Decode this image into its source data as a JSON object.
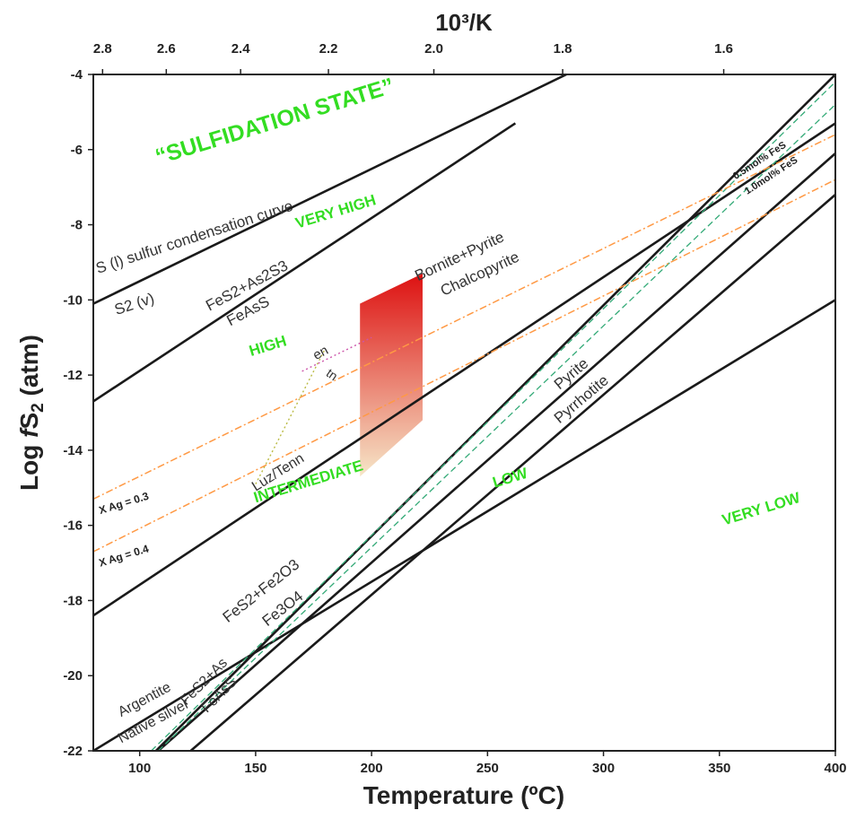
{
  "chart_data": {
    "type": "line",
    "xlabel": "Temperature (ºC)",
    "x2label": "10³/K",
    "ylabel_prefix": "Log ",
    "ylabel_italic": "f",
    "ylabel_main": "S",
    "ylabel_sub": "2",
    "ylabel_suffix": " (atm)",
    "xlim": [
      80,
      400
    ],
    "ylim": [
      -22,
      -4
    ],
    "x_ticks": [
      100,
      150,
      200,
      250,
      300,
      350,
      400
    ],
    "y_ticks": [
      -4,
      -6,
      -8,
      -10,
      -12,
      -14,
      -16,
      -18,
      -20,
      -22
    ],
    "x2_ticks": [
      "2.8",
      "2.6",
      "2.4",
      "2.2",
      "2.0",
      "1.8",
      "1.6"
    ],
    "zones": [
      {
        "text": "“SULFIDATION STATE”",
        "x": 108,
        "y": -6.4,
        "rot": -17,
        "size": 25
      },
      {
        "text": "VERY HIGH",
        "x": 168,
        "y": -8.1,
        "rot": -17,
        "size": 17
      },
      {
        "text": "HIGH",
        "x": 148,
        "y": -11.5,
        "rot": -17,
        "size": 17
      },
      {
        "text": "INTERMEDIATE",
        "x": 150,
        "y": -15.4,
        "rot": -17,
        "size": 17
      },
      {
        "text": "LOW",
        "x": 253,
        "y": -15.0,
        "rot": -17,
        "size": 17
      },
      {
        "text": "VERY LOW",
        "x": 352,
        "y": -16.0,
        "rot": -17,
        "size": 17
      }
    ],
    "series": [
      {
        "x": [
          80,
          284
        ],
        "y": [
          -10.1,
          -4.0
        ],
        "style": "solid"
      },
      {
        "x": [
          80,
          262
        ],
        "y": [
          -12.7,
          -5.3
        ],
        "style": "solid"
      },
      {
        "x": [
          80,
          400
        ],
        "y": [
          -18.4,
          -5.3
        ],
        "style": "solid"
      },
      {
        "x": [
          80,
          400
        ],
        "y": [
          -22.0,
          -10.0
        ],
        "style": "solid"
      },
      {
        "x": [
          107,
          400
        ],
        "y": [
          -22.0,
          -4.0
        ],
        "style": "solid"
      },
      {
        "x": [
          108,
          400
        ],
        "y": [
          -22.0,
          -6.1
        ],
        "style": "solid"
      },
      {
        "x": [
          122,
          400
        ],
        "y": [
          -22.0,
          -7.2
        ],
        "style": "solid"
      },
      {
        "x": [
          105,
          400
        ],
        "y": [
          -22.0,
          -4.2
        ],
        "style": "dash",
        "color": "#33aa77"
      },
      {
        "x": [
          108,
          400
        ],
        "y": [
          -22.0,
          -4.8
        ],
        "style": "dash",
        "color": "#33aa77"
      },
      {
        "x": [
          80,
          400
        ],
        "y": [
          -15.3,
          -5.6
        ],
        "style": "dashdot",
        "color": "#ff9944"
      },
      {
        "x": [
          80,
          400
        ],
        "y": [
          -16.7,
          -6.8
        ],
        "style": "dashdot",
        "color": "#ff9944"
      },
      {
        "x": [
          150,
          180
        ],
        "y": [
          -14.9,
          -11.3
        ],
        "style": "dot",
        "color": "#bbbb44"
      },
      {
        "x": [
          170,
          200
        ],
        "y": [
          -11.9,
          -11.0
        ],
        "style": "dot",
        "color": "#cc55aa"
      }
    ],
    "shaded_region": {
      "x": [
        195,
        195,
        222,
        222
      ],
      "y": [
        -10.1,
        -14.7,
        -13.2,
        -9.3
      ],
      "color_top": "#dd1111",
      "color_bottom": "#f6e6c8"
    },
    "curve_labels": [
      {
        "text": "S (l) sulfur condensation curve",
        "x": 82,
        "y": -9.3,
        "rot": -18,
        "size": 17
      },
      {
        "text": "S2 (v)",
        "x": 90,
        "y": -10.4,
        "rot": -18,
        "size": 17
      },
      {
        "text": "FeS2+As2S3",
        "x": 130,
        "y": -10.3,
        "rot": -28,
        "size": 17
      },
      {
        "text": "FeAsS",
        "x": 139,
        "y": -10.7,
        "rot": -28,
        "size": 17
      },
      {
        "text": "Bornite+Pyrite",
        "x": 220,
        "y": -9.5,
        "rot": -25,
        "size": 17
      },
      {
        "text": "Chalcopyrite",
        "x": 231,
        "y": -9.9,
        "rot": -25,
        "size": 17
      },
      {
        "text": "en",
        "x": 176,
        "y": -11.6,
        "rot": -28,
        "size": 15
      },
      {
        "text": "tn",
        "x": 180,
        "y": -12.0,
        "rot": 35,
        "size": 14
      },
      {
        "text": "Luz/Tenn",
        "x": 150,
        "y": -15.1,
        "rot": -32,
        "size": 16
      },
      {
        "text": "FeS2+Fe2O3",
        "x": 138,
        "y": -18.6,
        "rot": -38,
        "size": 17
      },
      {
        "text": "Fe3O4",
        "x": 155,
        "y": -18.7,
        "rot": -38,
        "size": 17
      },
      {
        "text": "Argentite",
        "x": 92,
        "y": -21.1,
        "rot": -28,
        "size": 16
      },
      {
        "text": "Native silver",
        "x": 92,
        "y": -21.8,
        "rot": -28,
        "size": 16
      },
      {
        "text": "FeS2+As",
        "x": 120,
        "y": -20.8,
        "rot": -45,
        "size": 16
      },
      {
        "text": "FeAsS",
        "x": 129,
        "y": -21.0,
        "rot": -45,
        "size": 16
      },
      {
        "text": "Pyrite",
        "x": 281,
        "y": -12.4,
        "rot": -40,
        "size": 17
      },
      {
        "text": "Pyrrhotite",
        "x": 281,
        "y": -13.3,
        "rot": -40,
        "size": 17
      },
      {
        "text": "0.5mol% FeS",
        "x": 357,
        "y": -6.8,
        "rot": -33,
        "size": 11
      },
      {
        "text": "1.0mol% FeS",
        "x": 362,
        "y": -7.2,
        "rot": -33,
        "size": 11
      },
      {
        "text": "X Ag = 0.3",
        "x": 83,
        "y": -15.7,
        "rot": -17,
        "size": 12
      },
      {
        "text": "X Ag = 0.4",
        "x": 83,
        "y": -17.1,
        "rot": -17,
        "size": 12
      }
    ]
  }
}
